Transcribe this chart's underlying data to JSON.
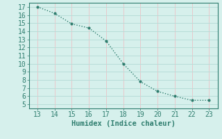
{
  "x": [
    13,
    14,
    15,
    16,
    17,
    18,
    19,
    20,
    21,
    22,
    23
  ],
  "y": [
    17.0,
    16.2,
    14.9,
    14.4,
    12.8,
    10.0,
    7.8,
    6.6,
    6.0,
    5.5,
    5.5
  ],
  "xlabel": "Humidex (Indice chaleur)",
  "xlim": [
    12.5,
    23.5
  ],
  "ylim": [
    4.5,
    17.5
  ],
  "xticks": [
    13,
    14,
    15,
    16,
    17,
    18,
    19,
    20,
    21,
    22,
    23
  ],
  "yticks": [
    5,
    6,
    7,
    8,
    9,
    10,
    11,
    12,
    13,
    14,
    15,
    16,
    17
  ],
  "line_color": "#2e7d6e",
  "marker_color": "#2e7d6e",
  "bg_color": "#d6f0ec",
  "grid_v_color": "#e8c8cc",
  "grid_h_color": "#b8ddd8",
  "font_color": "#2e7d6e",
  "xlabel_fontsize": 7.5,
  "tick_fontsize": 7
}
